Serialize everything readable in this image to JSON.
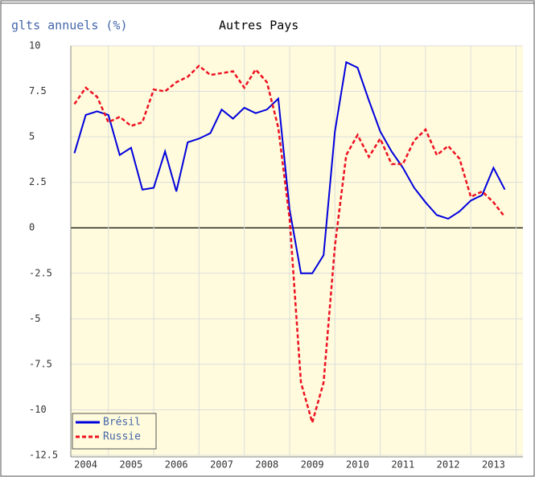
{
  "chart_data": {
    "type": "line",
    "title": "glts annuels (%)",
    "subtitle": "Autres Pays",
    "x": [
      2004.25,
      2004.5,
      2004.75,
      2005,
      2005.25,
      2005.5,
      2005.75,
      2006,
      2006.25,
      2006.5,
      2006.75,
      2007,
      2007.25,
      2007.5,
      2007.75,
      2008,
      2008.25,
      2008.5,
      2008.75,
      2009,
      2009.25,
      2009.5,
      2009.75,
      2010,
      2010.25,
      2010.5,
      2010.75,
      2011,
      2011.25,
      2011.5,
      2011.75,
      2012,
      2012.25,
      2012.5,
      2012.75,
      2013,
      2013.25,
      2013.5,
      2013.75
    ],
    "series": [
      {
        "name": "Brésil",
        "color": "#0000dd",
        "values": [
          4.1,
          6.2,
          6.4,
          6.2,
          4.0,
          4.4,
          2.1,
          2.2,
          4.2,
          2.0,
          4.7,
          4.9,
          5.2,
          6.5,
          6.0,
          6.6,
          6.3,
          6.5,
          7.1,
          1.0,
          -2.5,
          -2.5,
          -1.5,
          5.3,
          9.1,
          8.8,
          7.0,
          5.3,
          4.2,
          3.3,
          2.2,
          1.4,
          0.7,
          0.5,
          0.9,
          1.5,
          1.8,
          3.3,
          2.1
        ]
      },
      {
        "name": "Russie",
        "color": "#ee1122",
        "dashed": true,
        "values": [
          6.8,
          7.7,
          7.2,
          5.8,
          6.1,
          5.6,
          5.8,
          7.6,
          7.5,
          8.0,
          8.3,
          8.9,
          8.4,
          8.5,
          8.6,
          7.7,
          8.7,
          8.0,
          5.5,
          0.5,
          -8.5,
          -10.7,
          -8.5,
          -1.0,
          4.0,
          5.1,
          3.9,
          4.9,
          3.5,
          3.5,
          4.8,
          5.4,
          4.0,
          4.5,
          3.8,
          1.7,
          2.0,
          1.4,
          0.6
        ]
      }
    ],
    "xlim": [
      2004.17,
      2014.15
    ],
    "xticks": [
      {
        "value": 2004.5,
        "label": "2004"
      },
      {
        "value": 2005.5,
        "label": "2005"
      },
      {
        "value": 2006.5,
        "label": "2006"
      },
      {
        "value": 2007.5,
        "label": "2007"
      },
      {
        "value": 2008.5,
        "label": "2008"
      },
      {
        "value": 2009.5,
        "label": "2009"
      },
      {
        "value": 2010.5,
        "label": "2010"
      },
      {
        "value": 2011.5,
        "label": "2011"
      },
      {
        "value": 2012.5,
        "label": "2012"
      },
      {
        "value": 2013.5,
        "label": "2013"
      }
    ],
    "ylim": [
      -12.5,
      10
    ],
    "yticks": [
      -12.5,
      -10,
      -7.5,
      -5,
      -2.5,
      0,
      2.5,
      5,
      7.5,
      10
    ],
    "grid": true,
    "legend": "lower left"
  }
}
